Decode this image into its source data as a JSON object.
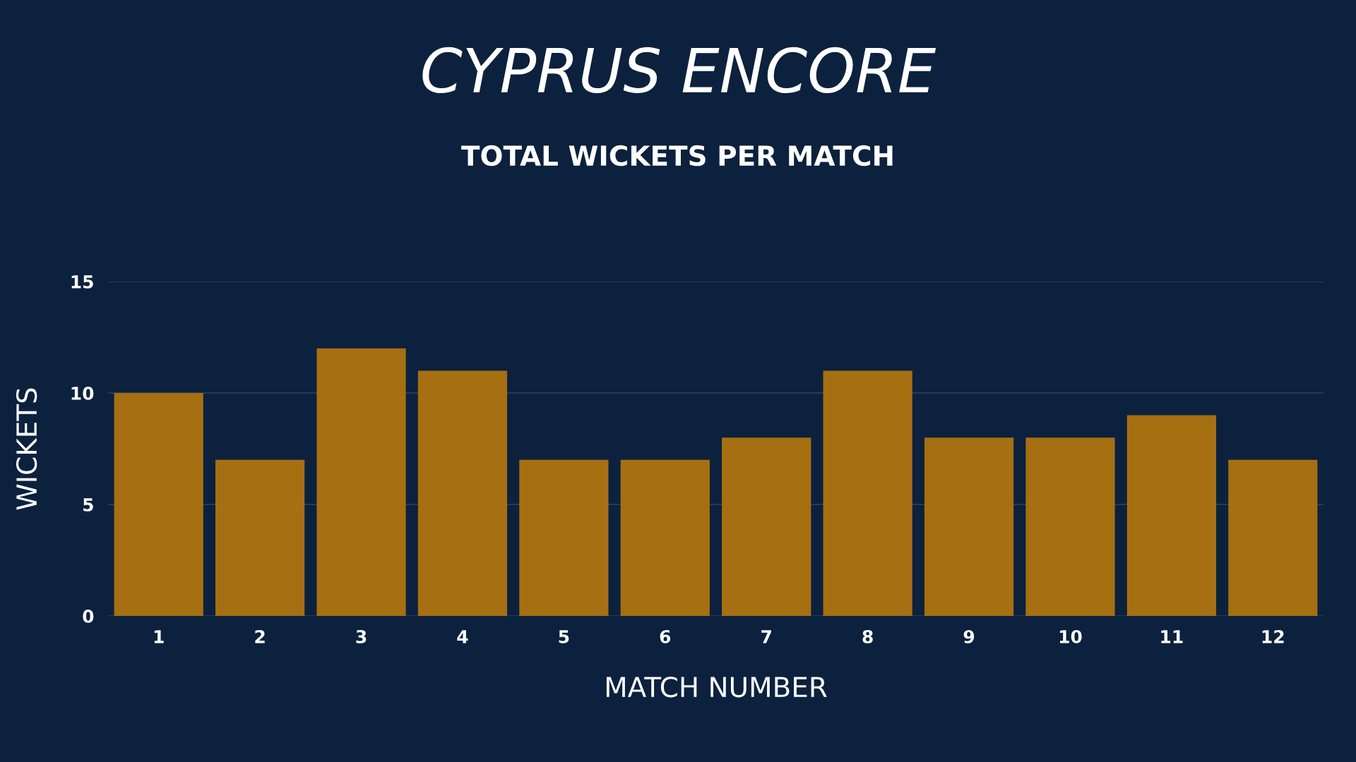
{
  "chart_data": {
    "type": "bar",
    "title": "CYPRUS ENCORE",
    "subtitle": "TOTAL WICKETS PER MATCH",
    "xlabel": "MATCH NUMBER",
    "ylabel": "WICKETS",
    "categories": [
      "1",
      "2",
      "3",
      "4",
      "5",
      "6",
      "7",
      "8",
      "9",
      "10",
      "11",
      "12"
    ],
    "values": [
      10,
      7,
      12,
      11,
      7,
      7,
      8,
      11,
      8,
      8,
      9,
      7
    ],
    "color": "#a66f12",
    "ylim": [
      0,
      15
    ],
    "yticks": [
      0,
      5,
      10,
      15
    ],
    "grid": "y"
  }
}
